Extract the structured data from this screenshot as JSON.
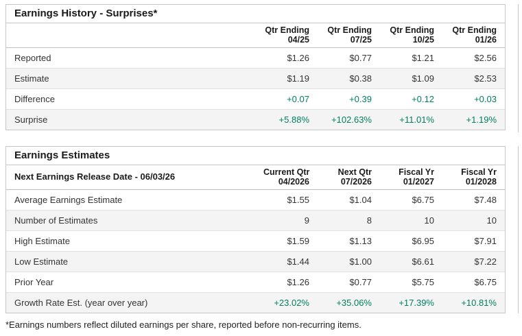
{
  "colors": {
    "positive": "#00805F"
  },
  "surprises_table": {
    "title": "Earnings History - Surprises*",
    "columns": [
      {
        "line1": "Qtr Ending",
        "line2": "04/25"
      },
      {
        "line1": "Qtr Ending",
        "line2": "07/25"
      },
      {
        "line1": "Qtr Ending",
        "line2": "10/25"
      },
      {
        "line1": "Qtr Ending",
        "line2": "01/26"
      }
    ],
    "rows": [
      {
        "label": "Reported",
        "values": [
          "$1.26",
          "$0.77",
          "$1.21",
          "$2.56"
        ]
      },
      {
        "label": "Estimate",
        "values": [
          "$1.19",
          "$0.38",
          "$1.09",
          "$2.53"
        ]
      },
      {
        "label": "Difference",
        "values": [
          "+0.07",
          "+0.39",
          "+0.12",
          "+0.03"
        ]
      },
      {
        "label": "Surprise",
        "values": [
          "+5.88%",
          "+102.63%",
          "+11.01%",
          "+1.19%"
        ]
      }
    ]
  },
  "estimates_table": {
    "title": "Earnings Estimates",
    "header_label": "Next Earnings Release Date - 06/03/26",
    "columns": [
      {
        "line1": "Current Qtr",
        "line2": "04/2026"
      },
      {
        "line1": "Next Qtr",
        "line2": "07/2026"
      },
      {
        "line1": "Fiscal Yr",
        "line2": "01/2027"
      },
      {
        "line1": "Fiscal Yr",
        "line2": "01/2028"
      }
    ],
    "rows": [
      {
        "label": "Average Earnings Estimate",
        "values": [
          "$1.55",
          "$1.04",
          "$6.75",
          "$7.48"
        ]
      },
      {
        "label": "Number of Estimates",
        "values": [
          "9",
          "8",
          "10",
          "10"
        ]
      },
      {
        "label": "High Estimate",
        "values": [
          "$1.59",
          "$1.13",
          "$6.95",
          "$7.91"
        ]
      },
      {
        "label": "Low Estimate",
        "values": [
          "$1.44",
          "$1.00",
          "$6.61",
          "$7.22"
        ]
      },
      {
        "label": "Prior Year",
        "values": [
          "$1.26",
          "$0.77",
          "$5.75",
          "$6.75"
        ]
      },
      {
        "label": "Growth Rate Est. (year over year)",
        "values": [
          "+23.02%",
          "+35.06%",
          "+17.39%",
          "+10.81%"
        ]
      }
    ]
  },
  "footnote": "*Earnings numbers reflect diluted earnings per share, reported before non-recurring items."
}
